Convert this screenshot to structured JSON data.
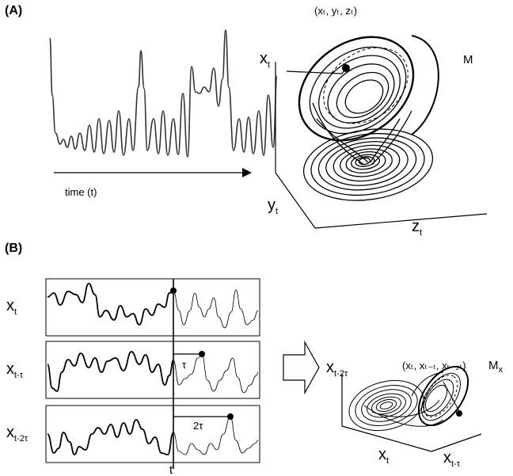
{
  "panel_a": {
    "label": "(A)",
    "time_axis_label": "time (t)",
    "axis_x": "x",
    "axis_x_sub": "t",
    "axis_y": "y",
    "axis_y_sub": "t",
    "axis_z": "z",
    "axis_z_sub": "t",
    "point_label": "(xₜ, yₜ, zₜ)",
    "manifold_label": "M"
  },
  "panel_b": {
    "label": "(B)",
    "row1_label": "x",
    "row1_sub": "t",
    "row2_label": "x",
    "row2_sub": "t-τ",
    "row3_label": "x",
    "row3_sub": "t-2τ",
    "lag1": "τ",
    "lag2": "2τ",
    "time_marker": "t",
    "recon_axis_vertical": "x",
    "recon_axis_vertical_sub": "t-2τ",
    "recon_axis_x": "x",
    "recon_axis_x_sub": "t",
    "recon_axis_lag": "x",
    "recon_axis_lag_sub": "t-τ",
    "point_label": "(xₜ, xₜ₋ₜ, xₜ₋₂ₜ)",
    "manifold_label": "M",
    "manifold_sub": "x"
  }
}
